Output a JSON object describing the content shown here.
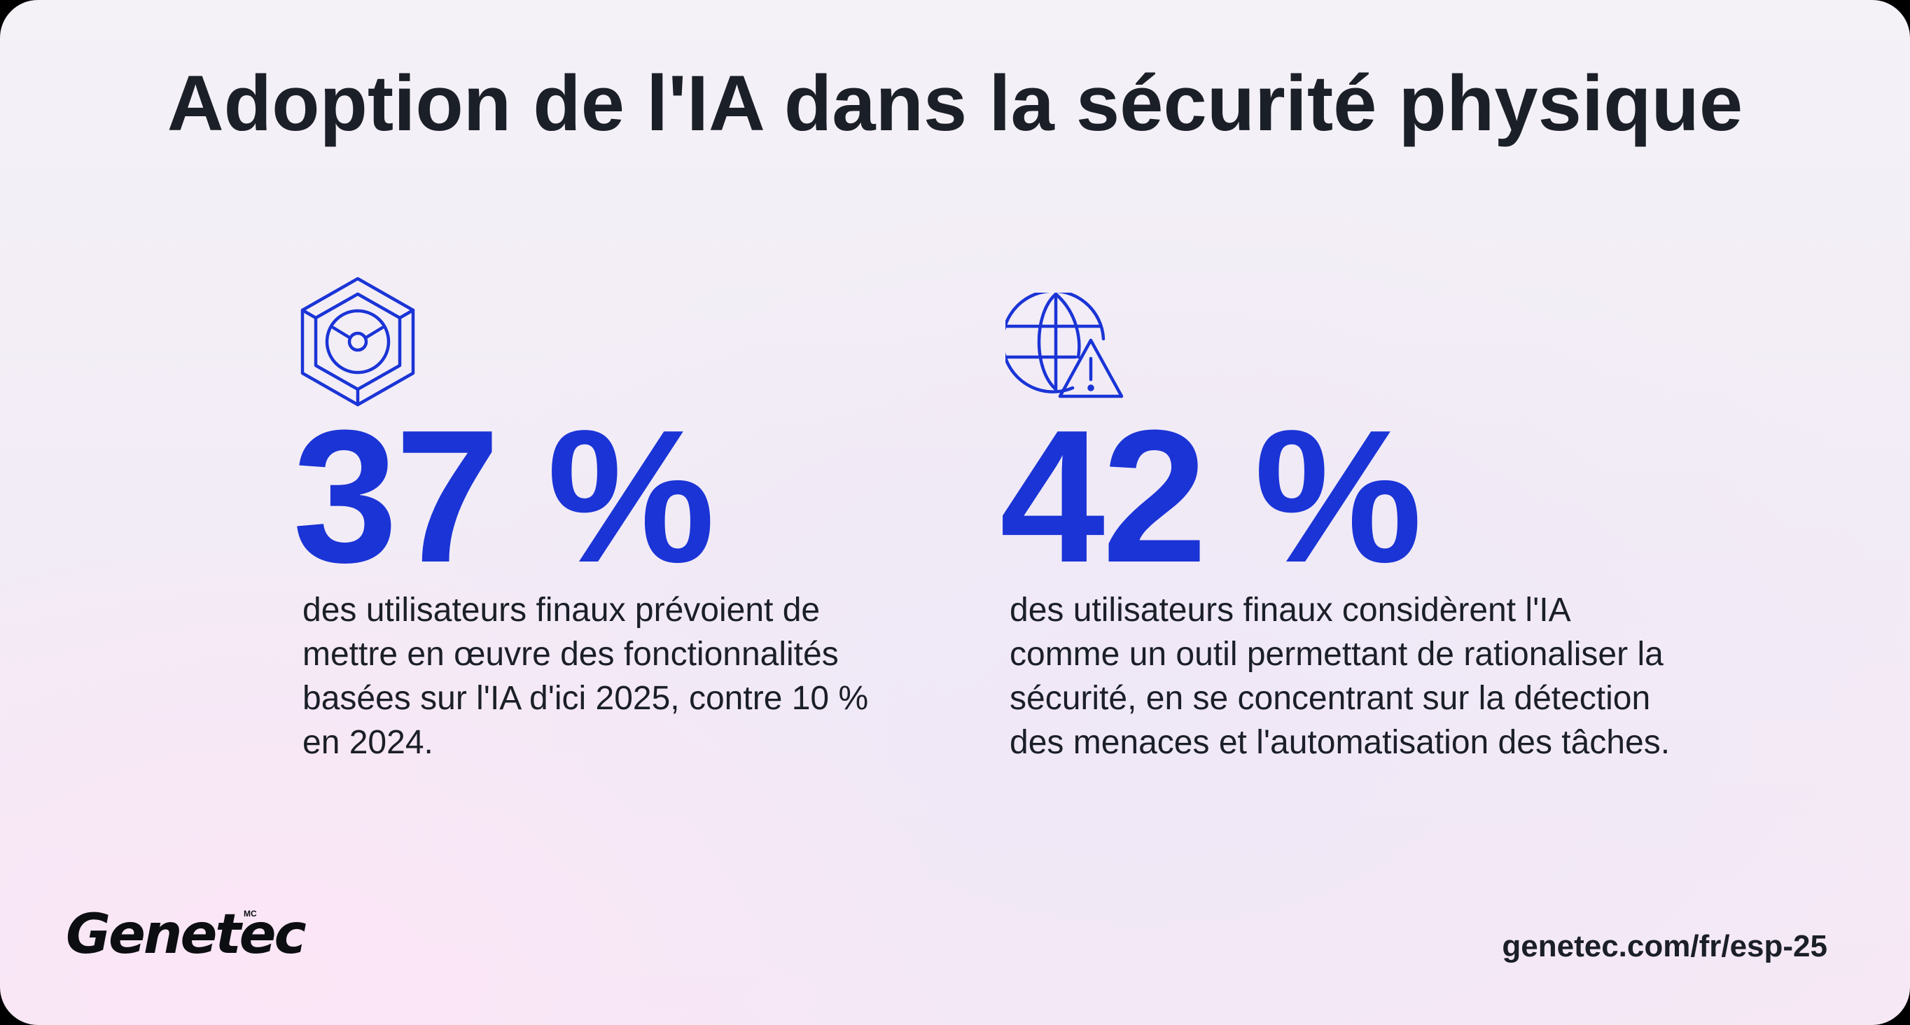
{
  "title": "Adoption de l'IA dans la sécurité physique",
  "stats": [
    {
      "icon": "shield-cube-icon",
      "value": "37 %",
      "description_lines": [
        "des utilisateurs finaux prévoient de",
        "mettre en œuvre des fonctionnalités",
        "basées sur l'IA d'ici 2025, contre 10 %",
        "en 2024."
      ]
    },
    {
      "icon": "globe-warning-icon",
      "value": "42 %",
      "description_lines": [
        "des utilisateurs finaux considèrent l'IA",
        "comme un outil permettant de rationaliser la",
        "sécurité, en se concentrant sur la détection",
        "des menaces et l'automatisation des tâches."
      ]
    }
  ],
  "footer": {
    "logo": "Genetec",
    "logo_mark": "MC",
    "url": "genetec.com/fr/esp-25"
  },
  "colors": {
    "accent": "#1a34d6",
    "text": "#1b1f27"
  }
}
